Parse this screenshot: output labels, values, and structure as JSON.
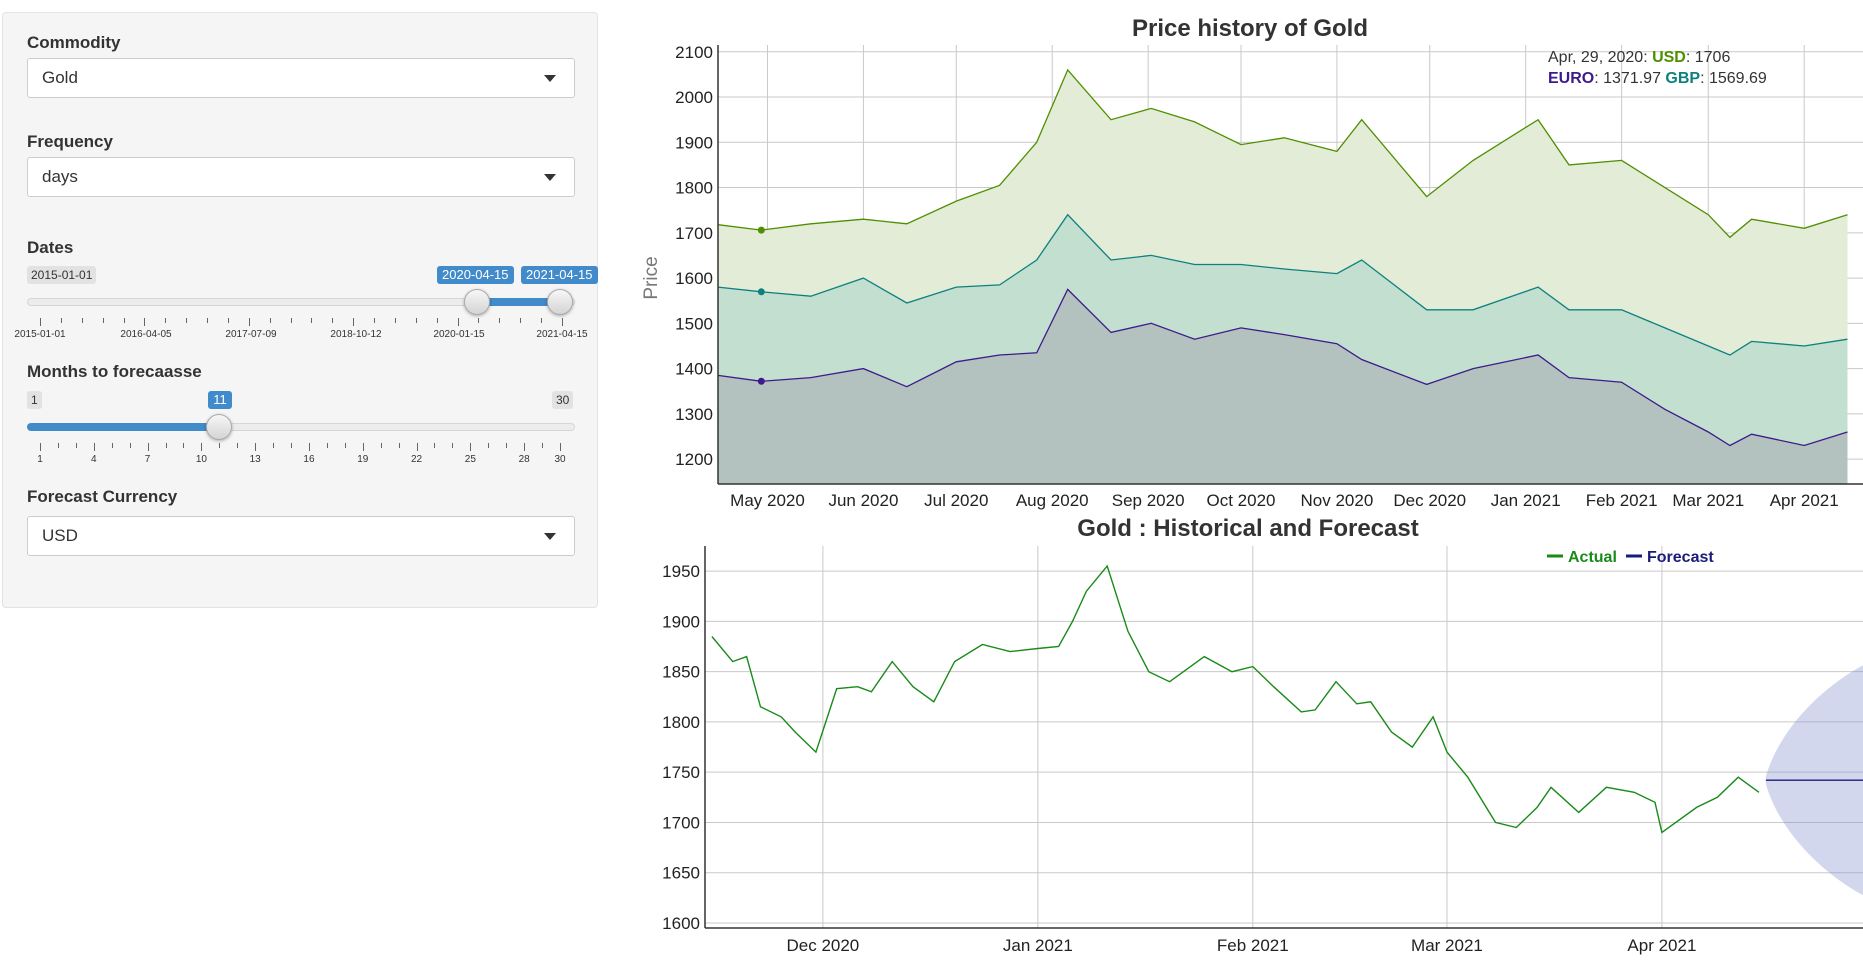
{
  "sidebar": {
    "commodity": {
      "label": "Commodity",
      "value": "Gold"
    },
    "frequency": {
      "label": "Frequency",
      "value": "days"
    },
    "dates": {
      "label": "Dates",
      "min_label": "2015-01-01",
      "from_value": "2020-04-15",
      "to_value": "2021-04-15",
      "tick_labels": [
        "2015-01-01",
        "2016-04-05",
        "2017-07-09",
        "2018-10-12",
        "2020-01-15",
        "2021-04-15"
      ]
    },
    "months": {
      "label": "Months to forecaasse",
      "min": "1",
      "max": "30",
      "value": "11",
      "fraction": 0.3448,
      "tick_labels": [
        "1",
        "4",
        "7",
        "10",
        "13",
        "16",
        "19",
        "22",
        "25",
        "28",
        "30"
      ]
    },
    "currency": {
      "label": "Forecast Currency",
      "value": "USD"
    }
  },
  "colors": {
    "usd": "#4f8f00",
    "gbp": "#0f8080",
    "euro": "#3f1a8c",
    "actual": "#1a8a1a",
    "forecast": "#1b1b7a",
    "accent": "#428bca"
  },
  "chart_data": [
    {
      "type": "area",
      "title": "Price history of Gold",
      "ylabel": "Price",
      "ylim": [
        1145,
        2115
      ],
      "yticks": [
        1200,
        1300,
        1400,
        1500,
        1600,
        1700,
        1800,
        1900,
        2000,
        2100
      ],
      "x_tick_labels": [
        "May 2020",
        "Jun 2020",
        "Jul 2020",
        "Aug 2020",
        "Sep 2020",
        "Oct 2020",
        "Nov 2020",
        "Dec 2020",
        "Jan 2021",
        "Feb 2021",
        "Mar 2021",
        "Apr 2021"
      ],
      "x": [
        "2020-04-15",
        "2020-04-29",
        "2020-05-15",
        "2020-06-01",
        "2020-06-15",
        "2020-07-01",
        "2020-07-15",
        "2020-07-27",
        "2020-08-06",
        "2020-08-20",
        "2020-09-02",
        "2020-09-16",
        "2020-10-01",
        "2020-10-15",
        "2020-11-01",
        "2020-11-09",
        "2020-11-30",
        "2020-12-15",
        "2021-01-05",
        "2021-01-15",
        "2021-02-01",
        "2021-02-15",
        "2021-03-01",
        "2021-03-08",
        "2021-03-15",
        "2021-04-01",
        "2021-04-15"
      ],
      "series": [
        {
          "name": "USD",
          "values": [
            1718,
            1706,
            1720,
            1730,
            1720,
            1770,
            1805,
            1900,
            2060,
            1950,
            1975,
            1945,
            1895,
            1910,
            1880,
            1950,
            1780,
            1860,
            1950,
            1850,
            1860,
            1800,
            1740,
            1690,
            1730,
            1710,
            1740
          ]
        },
        {
          "name": "EURO",
          "values": [
            1385,
            1371.97,
            1380,
            1400,
            1360,
            1415,
            1430,
            1435,
            1575,
            1480,
            1500,
            1465,
            1490,
            1475,
            1455,
            1420,
            1365,
            1400,
            1430,
            1380,
            1370,
            1310,
            1260,
            1230,
            1255,
            1230,
            1260
          ]
        },
        {
          "name": "GBP",
          "values": [
            1580,
            1569.69,
            1560,
            1600,
            1545,
            1580,
            1585,
            1640,
            1740,
            1640,
            1650,
            1630,
            1630,
            1620,
            1610,
            1640,
            1530,
            1530,
            1580,
            1530,
            1530,
            1490,
            1450,
            1430,
            1460,
            1450,
            1465
          ]
        }
      ],
      "hover": {
        "date": "Apr, 29, 2020",
        "usd": "1706",
        "euro": "1371.97",
        "gbp": "1569.69"
      }
    },
    {
      "type": "line",
      "title": "Gold : Historical and Forecast",
      "ylim": [
        1595,
        1975
      ],
      "yticks": [
        1600,
        1650,
        1700,
        1750,
        1800,
        1850,
        1900,
        1950
      ],
      "x_tick_labels": [
        "Dec 2020",
        "Jan 2021",
        "Feb 2021",
        "Mar 2021",
        "Apr 2021"
      ],
      "legend": [
        "Actual",
        "Forecast"
      ],
      "series": [
        {
          "name": "Actual",
          "x": [
            "2020-11-15",
            "2020-11-18",
            "2020-11-20",
            "2020-11-22",
            "2020-11-25",
            "2020-11-27",
            "2020-11-30",
            "2020-12-03",
            "2020-12-06",
            "2020-12-08",
            "2020-12-11",
            "2020-12-14",
            "2020-12-17",
            "2020-12-20",
            "2020-12-24",
            "2020-12-28",
            "2021-01-01",
            "2021-01-04",
            "2021-01-06",
            "2021-01-08",
            "2021-01-11",
            "2021-01-14",
            "2021-01-17",
            "2021-01-20",
            "2021-01-25",
            "2021-01-29",
            "2021-02-01",
            "2021-02-04",
            "2021-02-08",
            "2021-02-10",
            "2021-02-13",
            "2021-02-16",
            "2021-02-18",
            "2021-02-21",
            "2021-02-24",
            "2021-02-27",
            "2021-03-01",
            "2021-03-04",
            "2021-03-08",
            "2021-03-11",
            "2021-03-14",
            "2021-03-16",
            "2021-03-20",
            "2021-03-24",
            "2021-03-28",
            "2021-03-31",
            "2021-04-01",
            "2021-04-06",
            "2021-04-09",
            "2021-04-12",
            "2021-04-14",
            "2021-04-15"
          ],
          "values": [
            1885,
            1860,
            1865,
            1815,
            1805,
            1790,
            1770,
            1833,
            1835,
            1830,
            1860,
            1835,
            1820,
            1860,
            1877,
            1870,
            1873,
            1875,
            1900,
            1930,
            1955,
            1890,
            1850,
            1840,
            1865,
            1850,
            1855,
            1835,
            1810,
            1812,
            1840,
            1818,
            1820,
            1790,
            1775,
            1805,
            1770,
            1745,
            1700,
            1695,
            1715,
            1735,
            1710,
            1735,
            1730,
            1720,
            1690,
            1715,
            1725,
            1745,
            1735,
            1730
          ]
        },
        {
          "name": "Forecast",
          "x": [
            "2021-04-16",
            "2021-04-30"
          ],
          "values": [
            1742,
            1742
          ]
        }
      ]
    }
  ]
}
